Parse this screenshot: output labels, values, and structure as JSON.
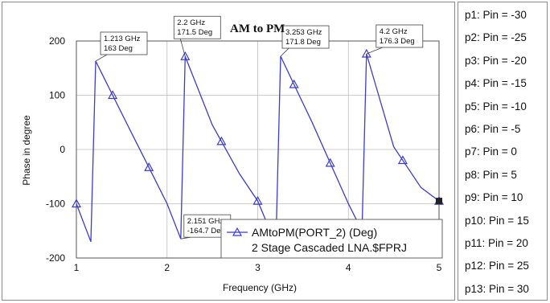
{
  "chart_data": {
    "type": "line",
    "title": "AM to PM",
    "xlabel": "Frequency (GHz)",
    "ylabel": "Phase in degree",
    "xlim": [
      1,
      5
    ],
    "ylim": [
      -200,
      200
    ],
    "xticks": [
      "1",
      "2",
      "3",
      "4",
      "5"
    ],
    "yticks": [
      "200",
      "100",
      "0",
      "-100",
      "-200"
    ],
    "grid": true,
    "series": [
      {
        "name": "AMtoPM(PORT_2) (Deg)",
        "subtitle": "2 Stage Cascaded LNA.$FPRJ",
        "color": "#3b3bd6",
        "x": [
          1.0,
          1.16,
          1.213,
          1.4,
          1.6,
          1.8,
          2.0,
          2.151,
          2.2,
          2.5,
          2.8,
          3.0,
          3.2,
          3.253,
          3.4,
          3.6,
          3.8,
          4.0,
          4.15,
          4.2,
          4.5,
          4.8,
          5.0
        ],
        "y": [
          -100,
          -170,
          163,
          100,
          33,
          -33,
          -100,
          -164.7,
          171.5,
          45,
          -45,
          -95,
          -175,
          171.8,
          120,
          50,
          -25,
          -100,
          -150,
          176.3,
          5,
          -70,
          -95
        ],
        "markers_at": [
          1.0,
          1.4,
          1.8,
          2.2,
          2.6,
          3.0,
          3.4,
          3.8,
          4.2,
          4.6,
          5.0
        ]
      }
    ],
    "annotations": [
      {
        "x": 1.213,
        "y": 163,
        "freq": "1.213 GHz",
        "phase": "163 Deg"
      },
      {
        "x": 2.2,
        "y": 171.5,
        "freq": "2.2 GHz",
        "phase": "171.5 Deg"
      },
      {
        "x": 3.253,
        "y": 171.8,
        "freq": "3.253 GHz",
        "phase": "171.8 Deg"
      },
      {
        "x": 4.2,
        "y": 176.3,
        "freq": "4.2 GHz",
        "phase": "176.3 Deg"
      },
      {
        "x": 2.151,
        "y": -164.7,
        "freq": "2.151 GHz",
        "phase": "-164.7 Deg"
      }
    ],
    "legend_placement": "bottom-right"
  },
  "sweep_labels": [
    "p1: Pin = -30",
    "p2: Pin = -25",
    "p3: Pin = -20",
    "p4: Pin = -15",
    "p5: Pin = -10",
    "p6: Pin = -5",
    "p7: Pin = 0",
    "p8: Pin = 5",
    "p9: Pin = 10",
    "p10: Pin = 15",
    "p11: Pin = 20",
    "p12: Pin = 25",
    "p13: Pin = 30"
  ]
}
